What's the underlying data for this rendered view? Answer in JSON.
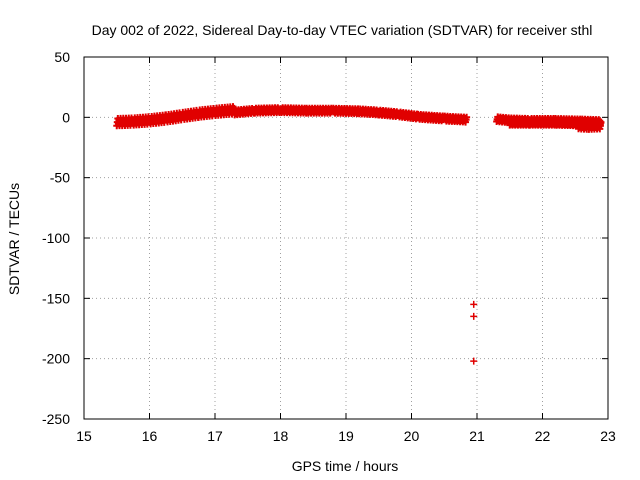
{
  "chart_data": {
    "type": "scatter",
    "title": "Day 002 of 2022, Sidereal Day-to-day VTEC variation (SDTVAR) for receiver sthl",
    "xlabel": "GPS time / hours",
    "ylabel": "SDTVAR / TECUs",
    "xlim": [
      15,
      23
    ],
    "ylim": [
      -250,
      50
    ],
    "xticks": [
      15,
      16,
      17,
      18,
      19,
      20,
      21,
      22,
      23
    ],
    "yticks": [
      50,
      0,
      -50,
      -100,
      -150,
      -200,
      -250
    ],
    "grid": true,
    "marker": "+",
    "color": "#e00000",
    "series": [
      {
        "name": "sthl",
        "segments": [
          {
            "x": [
              15.5,
              15.75,
              16.0,
              16.25,
              16.5,
              16.75,
              17.0,
              17.3
            ],
            "y": [
              -4,
              -3.5,
              -2.5,
              -1,
              1,
              3,
              4.5,
              6
            ],
            "spread": 3
          },
          {
            "x": [
              17.3,
              17.6,
              18.0,
              18.4,
              18.8,
              19.2,
              19.5,
              19.8,
              20.1,
              20.5,
              20.85
            ],
            "y": [
              4,
              5.5,
              6,
              5.5,
              5.5,
              5,
              4,
              2.5,
              0.5,
              -1,
              -2
            ],
            "spread": 2
          },
          {
            "x": [
              21.3,
              21.5,
              21.8,
              22.2,
              22.6,
              22.9
            ],
            "y": [
              -1.5,
              -2.5,
              -3,
              -3,
              -3.5,
              -4
            ],
            "spread": 2
          },
          {
            "x": [
              21.5,
              21.8,
              22.2,
              22.6
            ],
            "y": [
              -5,
              -5,
              -5,
              -5.5
            ],
            "spread": 1.5
          },
          {
            "x": [
              22.55,
              22.7,
              22.9
            ],
            "y": [
              -7,
              -7.5,
              -7
            ],
            "spread": 2.5
          }
        ],
        "outliers": [
          {
            "x": 20.95,
            "y": -155
          },
          {
            "x": 20.95,
            "y": -165
          },
          {
            "x": 20.95,
            "y": -202
          }
        ]
      }
    ]
  }
}
